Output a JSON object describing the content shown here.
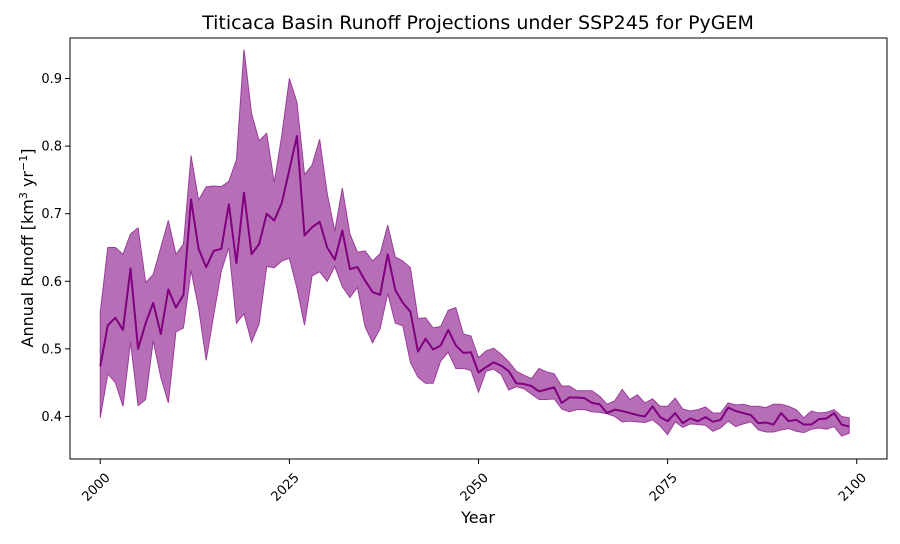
{
  "chart_data": {
    "type": "line",
    "title": "Titicaca Basin Runoff Projections under SSP245 for PyGEM",
    "xlabel": "Year",
    "ylabel_main": "Annual Runoff [km",
    "ylabel_sup1": "3",
    "ylabel_mid": " yr",
    "ylabel_sup2": "−1",
    "ylabel_end": "]",
    "xlim": [
      1996,
      2104
    ],
    "ylim": [
      0.337,
      0.96
    ],
    "xticks": [
      2000,
      2025,
      2050,
      2075,
      2100
    ],
    "xtick_labels": [
      "2000",
      "2025",
      "2050",
      "2075",
      "2100"
    ],
    "yticks": [
      0.4,
      0.5,
      0.6,
      0.7,
      0.8,
      0.9
    ],
    "ytick_labels": [
      "0.4",
      "0.5",
      "0.6",
      "0.7",
      "0.8",
      "0.9"
    ],
    "grid": false,
    "colors": {
      "line": "#800080",
      "band": "#b66fb6",
      "band_edge": "#9a3c9a"
    },
    "x_start": 2000,
    "x_end": 2099,
    "series": [
      {
        "values": [
          0.474,
          0.535,
          0.546,
          0.528,
          0.619,
          0.5,
          0.538,
          0.568,
          0.522,
          0.588,
          0.561,
          0.58,
          0.721,
          0.648,
          0.621,
          0.645,
          0.648,
          0.714,
          0.627,
          0.731,
          0.64,
          0.655,
          0.7,
          0.69,
          0.716,
          0.765,
          0.815,
          0.668,
          0.68,
          0.688,
          0.65,
          0.632,
          0.675,
          0.618,
          0.621,
          0.601,
          0.584,
          0.58,
          0.64,
          0.587,
          0.568,
          0.555,
          0.496,
          0.515,
          0.499,
          0.505,
          0.528,
          0.505,
          0.494,
          0.495,
          0.465,
          0.473,
          0.48,
          0.475,
          0.467,
          0.449,
          0.448,
          0.445,
          0.437,
          0.44,
          0.443,
          0.42,
          0.428,
          0.428,
          0.427,
          0.42,
          0.418,
          0.405,
          0.41,
          0.408,
          0.405,
          0.402,
          0.4,
          0.415,
          0.399,
          0.393,
          0.405,
          0.39,
          0.397,
          0.393,
          0.399,
          0.392,
          0.395,
          0.413,
          0.408,
          0.405,
          0.402,
          0.39,
          0.391,
          0.388,
          0.405,
          0.393,
          0.395,
          0.388,
          0.388,
          0.396,
          0.397,
          0.405,
          0.388,
          0.385
        ]
      }
    ],
    "band": {
      "upper": [
        0.554,
        0.65,
        0.65,
        0.64,
        0.67,
        0.679,
        0.598,
        0.61,
        0.65,
        0.69,
        0.64,
        0.655,
        0.786,
        0.72,
        0.74,
        0.741,
        0.74,
        0.748,
        0.78,
        0.943,
        0.848,
        0.808,
        0.819,
        0.746,
        0.816,
        0.9,
        0.865,
        0.758,
        0.772,
        0.81,
        0.73,
        0.674,
        0.738,
        0.67,
        0.643,
        0.645,
        0.63,
        0.641,
        0.683,
        0.636,
        0.63,
        0.62,
        0.545,
        0.546,
        0.531,
        0.533,
        0.557,
        0.561,
        0.522,
        0.519,
        0.487,
        0.497,
        0.501,
        0.492,
        0.481,
        0.467,
        0.461,
        0.456,
        0.471,
        0.466,
        0.463,
        0.445,
        0.445,
        0.438,
        0.438,
        0.438,
        0.43,
        0.418,
        0.423,
        0.44,
        0.425,
        0.432,
        0.42,
        0.426,
        0.415,
        0.415,
        0.427,
        0.411,
        0.408,
        0.41,
        0.414,
        0.405,
        0.405,
        0.42,
        0.417,
        0.418,
        0.415,
        0.415,
        0.413,
        0.418,
        0.418,
        0.415,
        0.41,
        0.398,
        0.408,
        0.405,
        0.406,
        0.41,
        0.4,
        0.398
      ],
      "lower": [
        0.398,
        0.463,
        0.45,
        0.415,
        0.51,
        0.416,
        0.425,
        0.512,
        0.458,
        0.42,
        0.525,
        0.531,
        0.616,
        0.56,
        0.483,
        0.55,
        0.615,
        0.65,
        0.538,
        0.552,
        0.51,
        0.537,
        0.622,
        0.62,
        0.63,
        0.634,
        0.59,
        0.535,
        0.608,
        0.614,
        0.6,
        0.622,
        0.592,
        0.576,
        0.591,
        0.533,
        0.509,
        0.53,
        0.582,
        0.538,
        0.534,
        0.48,
        0.458,
        0.449,
        0.449,
        0.482,
        0.495,
        0.471,
        0.471,
        0.468,
        0.436,
        0.467,
        0.47,
        0.462,
        0.439,
        0.444,
        0.441,
        0.433,
        0.425,
        0.425,
        0.426,
        0.411,
        0.407,
        0.41,
        0.41,
        0.407,
        0.406,
        0.404,
        0.4,
        0.392,
        0.393,
        0.392,
        0.391,
        0.395,
        0.386,
        0.373,
        0.392,
        0.384,
        0.389,
        0.388,
        0.387,
        0.378,
        0.383,
        0.393,
        0.385,
        0.389,
        0.392,
        0.38,
        0.377,
        0.377,
        0.38,
        0.382,
        0.378,
        0.376,
        0.381,
        0.383,
        0.381,
        0.385,
        0.371,
        0.375
      ]
    }
  }
}
